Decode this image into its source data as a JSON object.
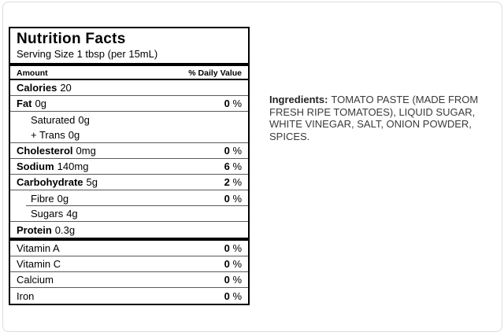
{
  "colors": {
    "page_bg": "#ffffff",
    "card_border": "#dcdcdc",
    "label_ink": "#000000",
    "rule_gray": "#5a5a5a",
    "ingredients_ink": "#3a3a3a"
  },
  "nutrition_facts": {
    "title": "Nutrition Facts",
    "serving_size": "Serving Size 1 tbsp (per 15mL)",
    "header": {
      "amount": "Amount",
      "daily_value": "% Daily Value"
    },
    "percent_sign": "%",
    "rows": [
      {
        "label": "Calories",
        "value": "20",
        "dv": null,
        "bold": true,
        "indent": false,
        "sep": "thin"
      },
      {
        "label": "Fat",
        "value": "0g",
        "dv": "0",
        "bold": true,
        "indent": false,
        "sep": "thin"
      },
      {
        "label": "Saturated",
        "value": "0g",
        "dv": null,
        "bold": false,
        "indent": true,
        "sep": "none"
      },
      {
        "label": "+ Trans",
        "value": "0g",
        "dv": null,
        "bold": false,
        "indent": true,
        "sep": "thin"
      },
      {
        "label": "Cholesterol",
        "value": "0mg",
        "dv": "0",
        "bold": true,
        "indent": false,
        "sep": "thin"
      },
      {
        "label": "Sodium",
        "value": "140mg",
        "dv": "6",
        "bold": true,
        "indent": false,
        "sep": "thin"
      },
      {
        "label": "Carbohydrate",
        "value": "5g",
        "dv": "2",
        "bold": true,
        "indent": false,
        "sep": "thin"
      },
      {
        "label": "Fibre",
        "value": "0g",
        "dv": "0",
        "bold": false,
        "indent": true,
        "sep": "thin-indent"
      },
      {
        "label": "Sugars",
        "value": "4g",
        "dv": null,
        "bold": false,
        "indent": true,
        "sep": "thin"
      },
      {
        "label": "Protein",
        "value": "0.3g",
        "dv": null,
        "bold": true,
        "indent": false,
        "sep": "thick"
      },
      {
        "label": "Vitamin A",
        "value": "",
        "dv": "0",
        "bold": false,
        "indent": false,
        "sep": "thin"
      },
      {
        "label": "Vitamin C",
        "value": "",
        "dv": "0",
        "bold": false,
        "indent": false,
        "sep": "thin"
      },
      {
        "label": "Calcium",
        "value": "",
        "dv": "0",
        "bold": false,
        "indent": false,
        "sep": "thin"
      },
      {
        "label": "Iron",
        "value": "",
        "dv": "0",
        "bold": false,
        "indent": false,
        "sep": "none"
      }
    ]
  },
  "ingredients": {
    "label": "Ingredients:",
    "text": "TOMATO PASTE (MADE FROM FRESH RIPE TOMATOES), LIQUID SUGAR, WHITE VINEGAR, SALT, ONION POWDER, SPICES."
  }
}
